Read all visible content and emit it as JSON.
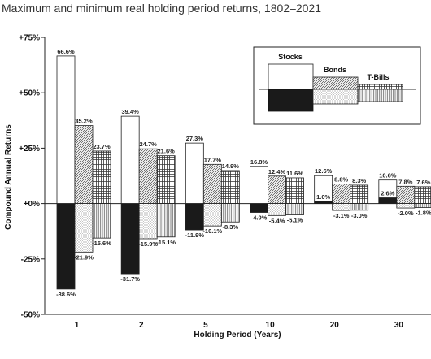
{
  "title": "Maximum and minimum real holding period returns, 1802–2021",
  "chart_data": {
    "type": "bar",
    "xlabel": "Holding Period (Years)",
    "ylabel": "Compound Annual Returns",
    "ylim": [
      -50,
      75
    ],
    "y_ticks": [
      {
        "value": 75,
        "label": "+75%"
      },
      {
        "value": 50,
        "label": "+50%"
      },
      {
        "value": 25,
        "label": "+25%"
      },
      {
        "value": 0,
        "label": "+0%"
      },
      {
        "value": -25,
        "label": "-25%"
      },
      {
        "value": -50,
        "label": "-50%"
      }
    ],
    "categories": [
      "1",
      "2",
      "5",
      "10",
      "20",
      "30"
    ],
    "grid": false,
    "legend_position": "top-right",
    "series": [
      {
        "name": "Stocks",
        "pattern": "plain",
        "max": [
          66.6,
          39.4,
          27.3,
          16.8,
          12.6,
          10.6
        ],
        "min": [
          -38.6,
          -31.7,
          -11.9,
          -4.0,
          1.0,
          2.6
        ],
        "max_labels": [
          "66.6%",
          "39.4%",
          "27.3%",
          "16.8%",
          "12.6%",
          "10.6%"
        ],
        "min_labels": [
          "-38.6%",
          "-31.7%",
          "-11.9%",
          "-4.0%",
          "1.0%",
          "2.6%"
        ]
      },
      {
        "name": "Bonds",
        "pattern": "diagonal",
        "max": [
          35.2,
          24.7,
          17.7,
          12.4,
          8.8,
          7.8
        ],
        "min": [
          -21.9,
          -15.9,
          -10.1,
          -5.4,
          -3.1,
          -2.0
        ],
        "max_labels": [
          "35.2%",
          "24.7%",
          "17.7%",
          "12.4%",
          "8.8%",
          "7.8%"
        ],
        "min_labels": [
          "-21.9%",
          "-15.9%",
          "-10.1%",
          "-5.4%",
          "-3.1%",
          "-2.0%"
        ]
      },
      {
        "name": "T-Bills",
        "pattern": "crosshatch",
        "max": [
          23.7,
          21.6,
          14.9,
          11.6,
          8.3,
          7.6
        ],
        "min": [
          -15.6,
          -15.1,
          -8.3,
          -5.1,
          -3.0,
          -1.8
        ],
        "max_labels": [
          "23.7%",
          "21.6%",
          "14.9%",
          "11.6%",
          "8.3%",
          "7.6%"
        ],
        "min_labels": [
          "-15.6%",
          "-15.1%",
          "-8.3%",
          "-5.1%",
          "-3.0%",
          "-1.8%"
        ]
      }
    ]
  }
}
